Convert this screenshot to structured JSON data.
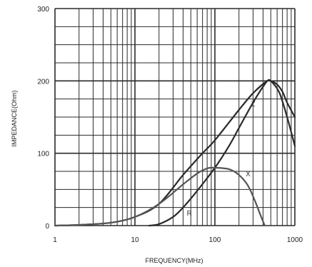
{
  "chart_data": {
    "type": "line",
    "title": "",
    "xlabel": "FREQUENCY(MHz)",
    "ylabel": "IMPEDANCE(Ohm)",
    "xscale": "log",
    "xlim": [
      1,
      1000
    ],
    "ylim": [
      0,
      300
    ],
    "grid": true,
    "x_ticks": [
      "1",
      "10",
      "100",
      "1000"
    ],
    "y_ticks": [
      "0",
      "100",
      "200",
      "300"
    ],
    "series": [
      {
        "name": "Z",
        "color": "#2a2a2a",
        "points": [
          [
            1,
            0
          ],
          [
            2,
            1
          ],
          [
            5,
            4
          ],
          [
            10,
            12
          ],
          [
            20,
            30
          ],
          [
            40,
            70
          ],
          [
            70,
            100
          ],
          [
            100,
            118
          ],
          [
            200,
            160
          ],
          [
            300,
            183
          ],
          [
            450,
            200
          ],
          [
            500,
            200
          ],
          [
            600,
            195
          ],
          [
            700,
            185
          ],
          [
            800,
            170
          ],
          [
            1000,
            150
          ]
        ]
      },
      {
        "name": "R",
        "color": "#2a2a2a",
        "points": [
          [
            15,
            0
          ],
          [
            20,
            2
          ],
          [
            30,
            12
          ],
          [
            40,
            25
          ],
          [
            60,
            48
          ],
          [
            100,
            80
          ],
          [
            150,
            110
          ],
          [
            200,
            135
          ],
          [
            300,
            170
          ],
          [
            400,
            192
          ],
          [
            470,
            201
          ],
          [
            550,
            195
          ],
          [
            650,
            182
          ],
          [
            800,
            150
          ],
          [
            1000,
            110
          ]
        ]
      },
      {
        "name": "X",
        "color": "#555555",
        "points": [
          [
            1,
            0
          ],
          [
            2,
            1
          ],
          [
            5,
            4
          ],
          [
            10,
            12
          ],
          [
            20,
            30
          ],
          [
            40,
            57
          ],
          [
            60,
            72
          ],
          [
            80,
            79
          ],
          [
            100,
            80
          ],
          [
            150,
            78
          ],
          [
            200,
            70
          ],
          [
            260,
            55
          ],
          [
            320,
            33
          ],
          [
            370,
            15
          ],
          [
            420,
            0
          ]
        ]
      }
    ],
    "annotations": [
      {
        "text": "Z",
        "x": 300,
        "y": 165
      },
      {
        "text": "X",
        "x": 260,
        "y": 68
      },
      {
        "text": "R",
        "x": 48,
        "y": 14
      }
    ]
  }
}
